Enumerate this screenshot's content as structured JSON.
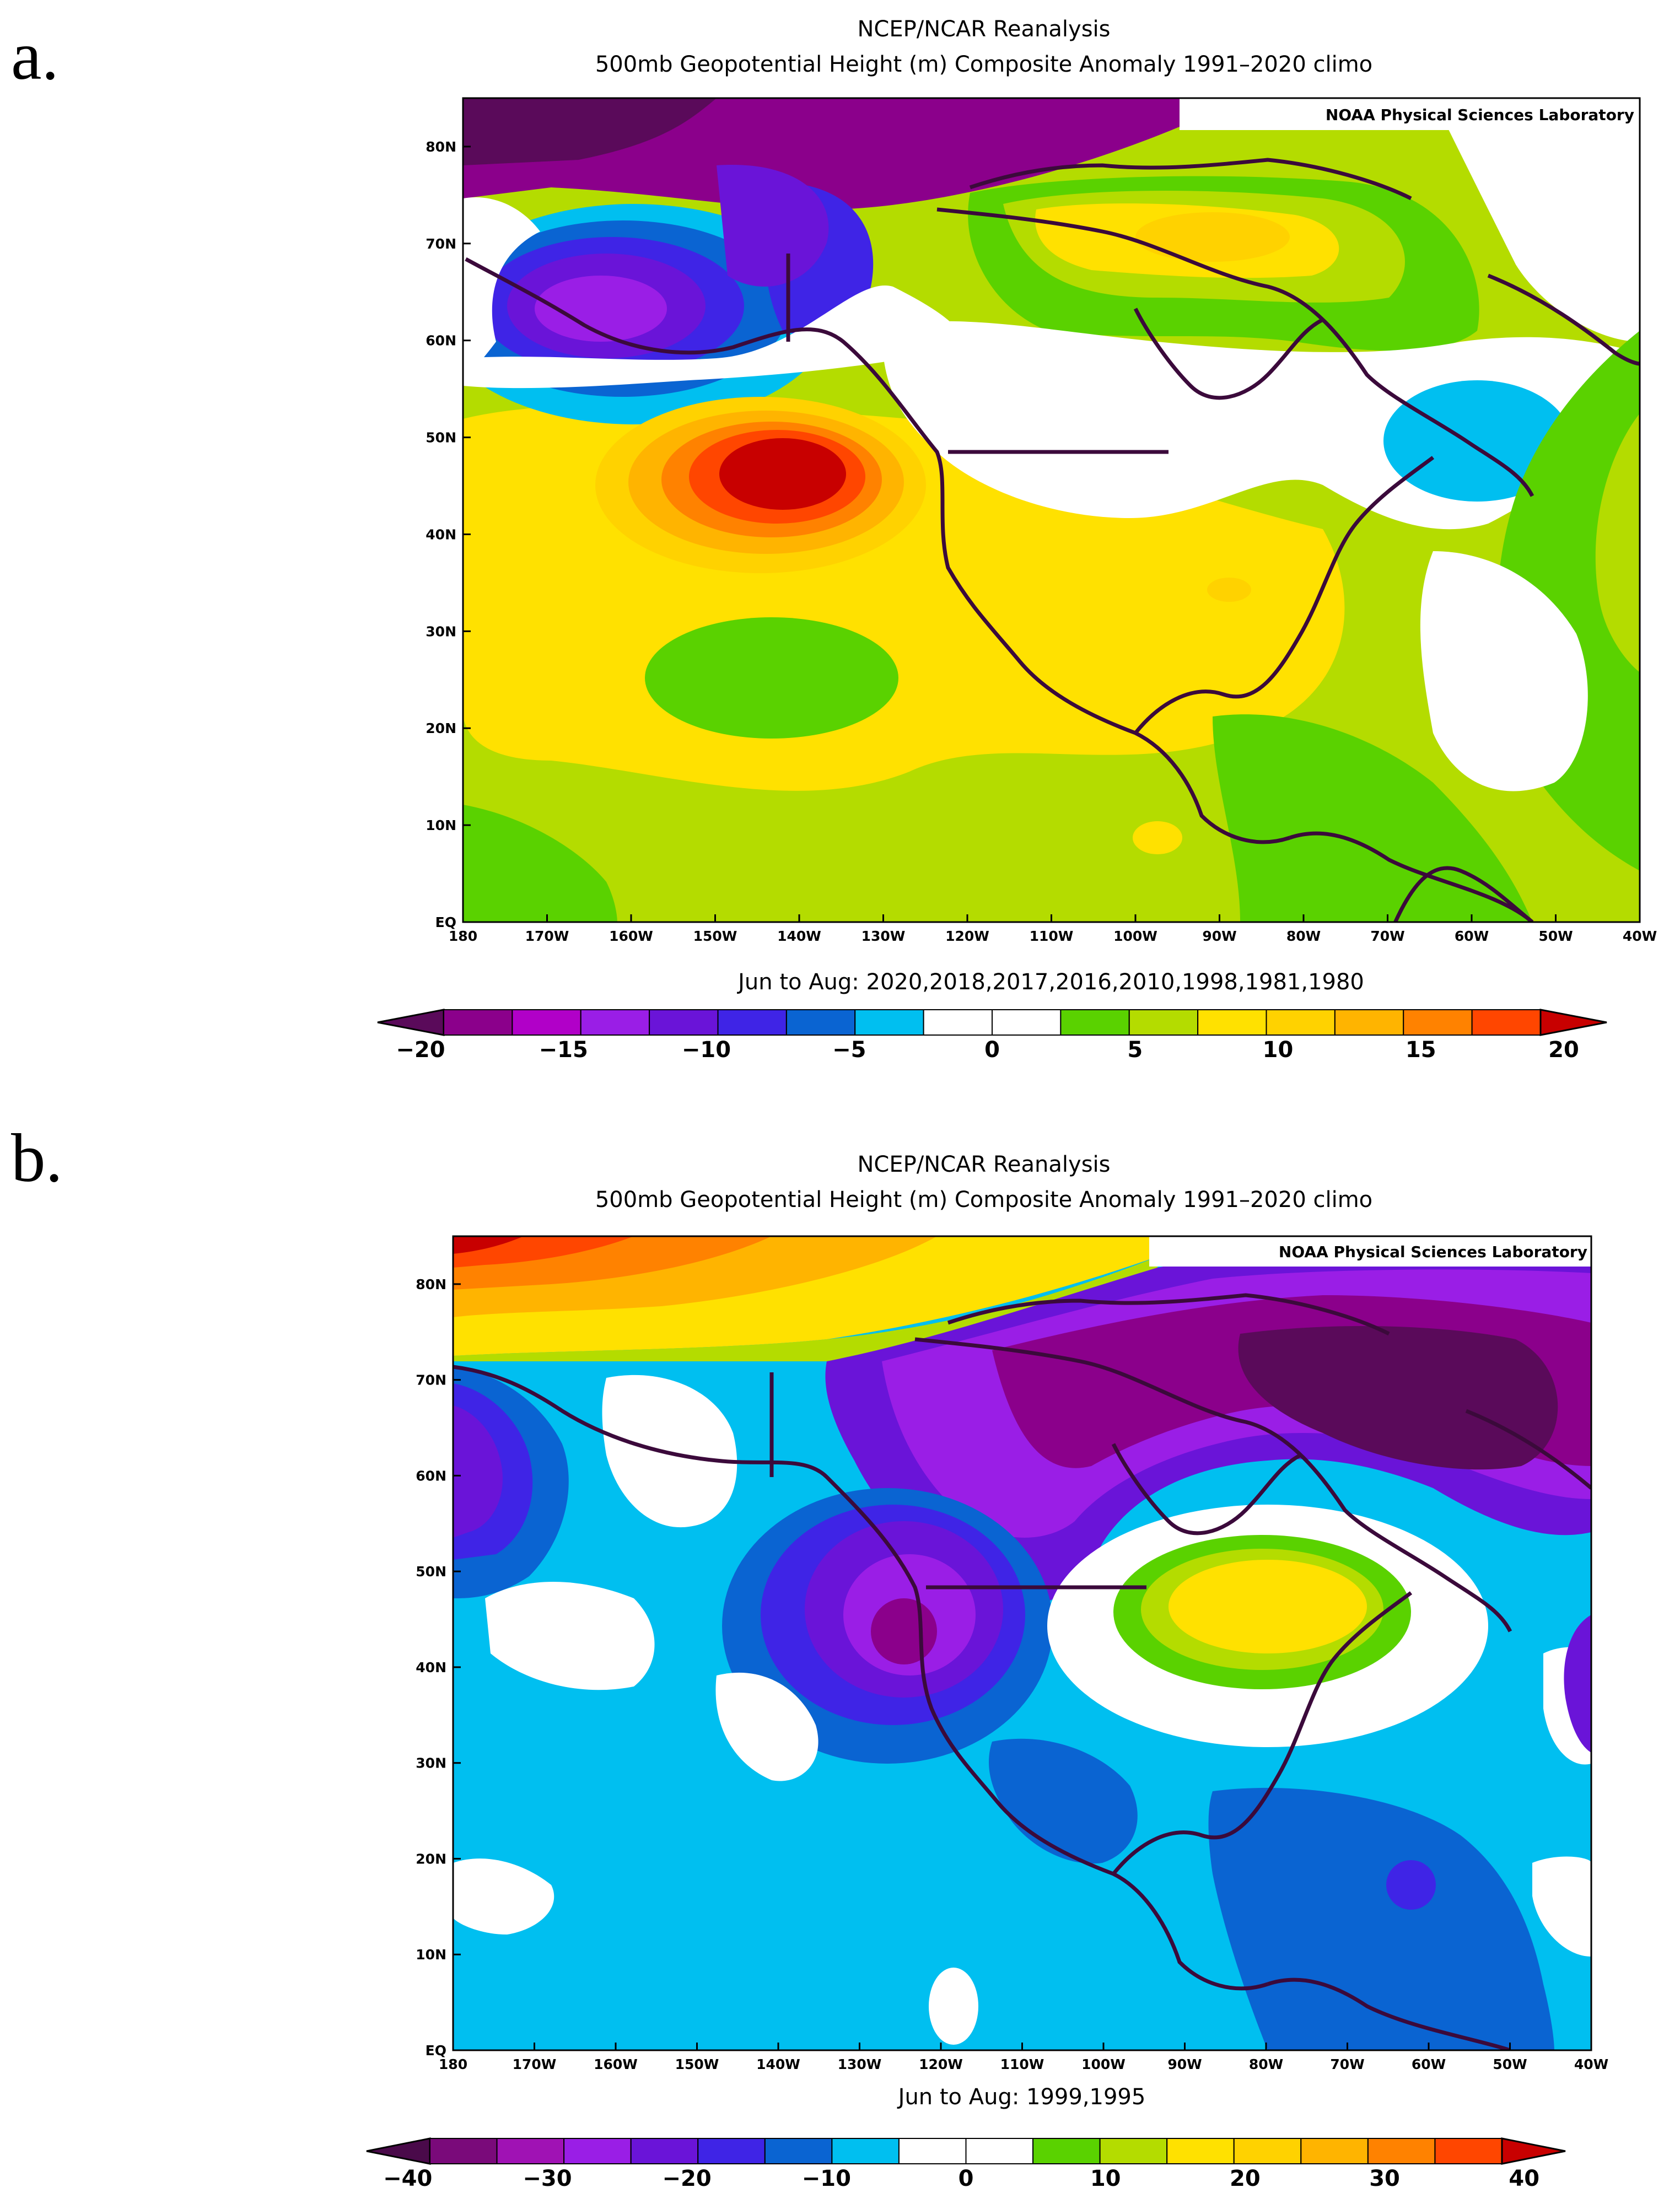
{
  "panels": [
    {
      "letter": "a.",
      "title_line1": "NCEP/NCAR Reanalysis",
      "title_line2": "500mb Geopotential Height (m) Composite Anomaly 1991–2020 climo",
      "credit": "NOAA Physical Sciences Laboratory",
      "subtitle": "Jun to Aug: 2020,2018,2017,2016,2010,1998,1981,1980",
      "lat_labels": [
        "80N",
        "70N",
        "60N",
        "50N",
        "40N",
        "30N",
        "20N",
        "10N",
        "EQ"
      ],
      "lon_labels": [
        "180",
        "170W",
        "160W",
        "150W",
        "140W",
        "130W",
        "120W",
        "110W",
        "100W",
        "90W",
        "80W",
        "70W",
        "60W",
        "50W",
        "40W"
      ],
      "colorbar_labels": [
        "−20",
        "−15",
        "−10",
        "−5",
        "0",
        "5",
        "10",
        "15",
        "20"
      ],
      "colorbar_colors": [
        "#5a0a5a",
        "#8b008b",
        "#b100c8",
        "#9a1ee6",
        "#6a14d8",
        "#3f24e6",
        "#0a64d2",
        "#00bff0",
        "#ffffff",
        "#ffffff",
        "#5ad200",
        "#b4dc00",
        "#ffe100",
        "#ffd200",
        "#ffb400",
        "#ff8200",
        "#ff4600",
        "#c80000"
      ]
    },
    {
      "letter": "b.",
      "title_line1": "NCEP/NCAR Reanalysis",
      "title_line2": "500mb Geopotential Height (m) Composite Anomaly 1991–2020 climo",
      "credit": "NOAA Physical Sciences Laboratory",
      "subtitle": "Jun to Aug: 1999,1995",
      "lat_labels": [
        "80N",
        "70N",
        "60N",
        "50N",
        "40N",
        "30N",
        "20N",
        "10N",
        "EQ"
      ],
      "lon_labels": [
        "180",
        "170W",
        "160W",
        "150W",
        "140W",
        "130W",
        "120W",
        "110W",
        "100W",
        "90W",
        "80W",
        "70W",
        "60W",
        "50W",
        "40W"
      ],
      "colorbar_labels": [
        "−40",
        "−30",
        "−20",
        "−10",
        "0",
        "10",
        "20",
        "30",
        "40"
      ],
      "colorbar_colors": [
        "#4a0a4a",
        "#7a0a7a",
        "#a012b4",
        "#9a1ee6",
        "#6a14d8",
        "#3f24e6",
        "#0a64d2",
        "#00bff0",
        "#ffffff",
        "#ffffff",
        "#5ad200",
        "#b4dc00",
        "#ffe100",
        "#ffd200",
        "#ffb400",
        "#ff8200",
        "#ff4600",
        "#c80000"
      ]
    }
  ]
}
